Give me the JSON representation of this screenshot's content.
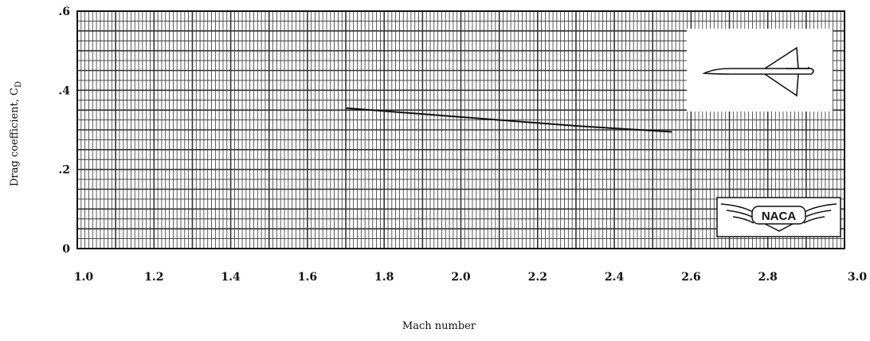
{
  "chart_data": {
    "type": "line",
    "title": "",
    "xlabel": "Mach number",
    "ylabel": "Drag coefficient, C",
    "ylabel_subscript": "D",
    "xlim": [
      1.0,
      3.0
    ],
    "ylim": [
      0,
      0.6
    ],
    "x_ticks": [
      "1.0",
      "1.2",
      "1.4",
      "1.6",
      "1.8",
      "2.0",
      "2.2",
      "2.4",
      "2.6",
      "2.8",
      "3.0"
    ],
    "y_ticks": [
      "0",
      ".2",
      ".4",
      ".6"
    ],
    "y_tick_values": [
      0,
      0.2,
      0.4,
      0.6
    ],
    "x_tick_values": [
      1.0,
      1.2,
      1.4,
      1.6,
      1.8,
      2.0,
      2.2,
      2.4,
      2.6,
      2.8,
      3.0
    ],
    "grid": true,
    "series": [
      {
        "x": [
          1.7,
          1.9,
          2.1,
          2.3,
          2.55
        ],
        "y": [
          0.355,
          0.34,
          0.325,
          0.31,
          0.295
        ]
      }
    ],
    "logo_text": "NACA"
  },
  "colors": {
    "grid": "#333333",
    "line": "#111111",
    "background": "#ffffff"
  }
}
